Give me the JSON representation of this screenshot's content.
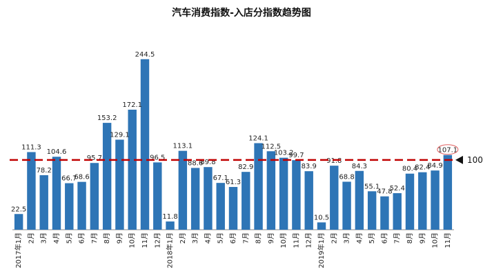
{
  "chart_data": {
    "type": "bar",
    "title": "汽车消费指数-入店分指数趋势图",
    "categories": [
      "2017年1月",
      "2月",
      "3月",
      "4月",
      "5月",
      "6月",
      "7月",
      "8月",
      "9月",
      "10月",
      "11月",
      "12月",
      "2018年1月",
      "2月",
      "3月",
      "4月",
      "5月",
      "6月",
      "7月",
      "8月",
      "9月",
      "10月",
      "11月",
      "12月",
      "2019年1月",
      "2月",
      "3月",
      "4月",
      "5月",
      "6月",
      "7月",
      "8月",
      "9月",
      "10月",
      "11月"
    ],
    "values": [
      22.5,
      111.3,
      78.2,
      104.6,
      66.7,
      68.6,
      95.7,
      153.2,
      129.1,
      172.1,
      244.5,
      96.5,
      11.8,
      113.1,
      88.6,
      89.8,
      67.1,
      61.3,
      82.9,
      124.1,
      112.5,
      103.2,
      99.7,
      83.9,
      10.5,
      91.8,
      68.8,
      84.3,
      55.1,
      47.8,
      52.4,
      80.4,
      82.4,
      84.9,
      107.1
    ],
    "value_labels": [
      "22.5",
      "111.3",
      "78.2",
      "104.6",
      "66.7",
      "68.6",
      "95.7",
      "153.2",
      "129.1",
      "172.1",
      "244.5",
      "96.5",
      "11.8",
      "113.1",
      "88.6",
      "89.8",
      "67.1",
      "61.3",
      "82.9",
      "124.1",
      "112.5",
      "103.2",
      "99.7",
      "83.9",
      "10.5",
      "91.8",
      "68.8",
      "84.3",
      "55.1",
      "47.8",
      "52.4",
      "80.4",
      "82.4",
      "84.9",
      "107.1"
    ],
    "reference_line": {
      "value": 100,
      "label": "100",
      "color": "#c00000",
      "style": "dashed"
    },
    "highlight_last_label": true,
    "bar_color": "#2e75b6",
    "ylim": [
      0,
      270
    ],
    "grid": false,
    "xlabel": "",
    "ylabel": ""
  }
}
